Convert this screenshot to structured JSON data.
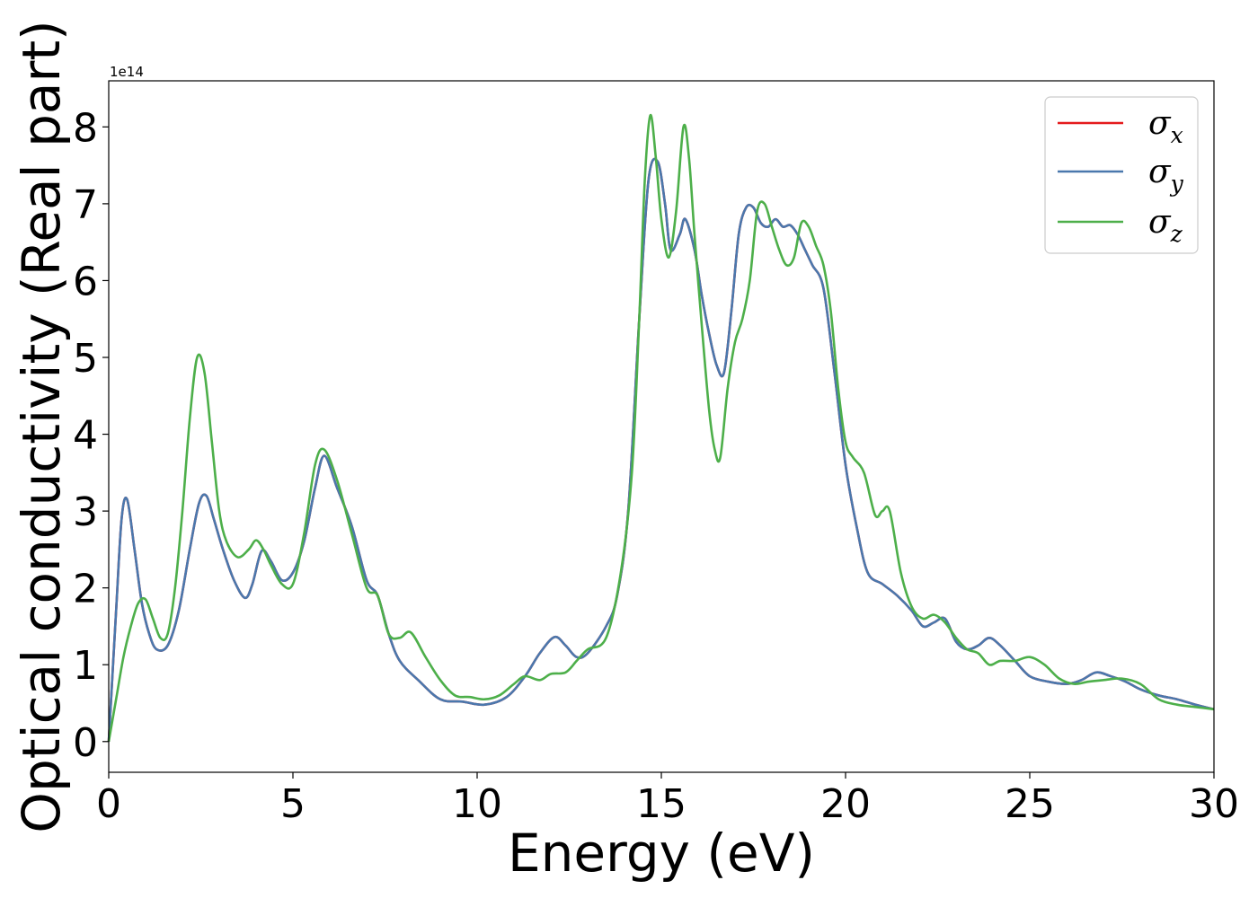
{
  "chart_data": {
    "type": "line",
    "xlabel": "Energy (eV)",
    "ylabel": "Optical conductivity (Real part)",
    "y_offset_text": "1e14",
    "xlim": [
      0,
      30
    ],
    "ylim": [
      -0.4,
      8.6
    ],
    "x_ticks": [
      0,
      5,
      10,
      15,
      20,
      25,
      30
    ],
    "y_ticks": [
      0,
      1,
      2,
      3,
      4,
      5,
      6,
      7,
      8
    ],
    "grid": false,
    "legend_position": "top-right",
    "series": [
      {
        "name": "σ",
        "subscript": "x",
        "color": "#e41a1c",
        "x": [
          0,
          0.2,
          0.35,
          0.5,
          0.7,
          0.9,
          1.1,
          1.3,
          1.6,
          1.9,
          2.2,
          2.45,
          2.65,
          2.85,
          3.1,
          3.4,
          3.7,
          3.9,
          4.15,
          4.4,
          4.7,
          5.0,
          5.3,
          5.6,
          5.85,
          6.2,
          6.6,
          7.0,
          7.3,
          7.6,
          7.9,
          8.4,
          9.0,
          9.6,
          10.2,
          10.8,
          11.3,
          11.7,
          12.1,
          12.4,
          12.7,
          13.0,
          13.5,
          13.8,
          14.1,
          14.4,
          14.65,
          14.9,
          15.1,
          15.25,
          15.5,
          15.65,
          15.9,
          16.1,
          16.3,
          16.5,
          16.7,
          16.9,
          17.1,
          17.3,
          17.5,
          17.7,
          17.9,
          18.1,
          18.3,
          18.5,
          18.7,
          18.9,
          19.1,
          19.4,
          19.7,
          20.0,
          20.3,
          20.6,
          21.0,
          21.4,
          21.8,
          22.1,
          22.4,
          22.7,
          23.0,
          23.3,
          23.6,
          23.9,
          24.2,
          24.6,
          25.0,
          25.5,
          26.0,
          26.4,
          26.8,
          27.2,
          27.6,
          28.0,
          28.5,
          29.0,
          29.5,
          30.0
        ],
        "values": [
          0,
          1.7,
          2.9,
          3.15,
          2.5,
          1.8,
          1.4,
          1.2,
          1.25,
          1.7,
          2.5,
          3.1,
          3.2,
          2.9,
          2.5,
          2.1,
          1.87,
          2.05,
          2.48,
          2.35,
          2.1,
          2.2,
          2.6,
          3.3,
          3.72,
          3.3,
          2.8,
          2.1,
          1.9,
          1.4,
          1.05,
          0.8,
          0.55,
          0.52,
          0.48,
          0.58,
          0.85,
          1.15,
          1.36,
          1.25,
          1.1,
          1.15,
          1.5,
          1.9,
          3.0,
          5.5,
          7.3,
          7.55,
          7.0,
          6.4,
          6.6,
          6.8,
          6.4,
          5.8,
          5.3,
          4.9,
          4.8,
          5.6,
          6.6,
          6.95,
          6.95,
          6.75,
          6.7,
          6.8,
          6.7,
          6.72,
          6.6,
          6.4,
          6.2,
          5.9,
          4.8,
          3.6,
          2.8,
          2.2,
          2.05,
          1.9,
          1.7,
          1.5,
          1.55,
          1.6,
          1.3,
          1.2,
          1.25,
          1.35,
          1.25,
          1.05,
          0.85,
          0.78,
          0.75,
          0.8,
          0.9,
          0.85,
          0.78,
          0.68,
          0.6,
          0.55,
          0.48,
          0.42
        ]
      },
      {
        "name": "σ",
        "subscript": "y",
        "color": "#4a78ad",
        "x": [
          0,
          0.2,
          0.35,
          0.5,
          0.7,
          0.9,
          1.1,
          1.3,
          1.6,
          1.9,
          2.2,
          2.45,
          2.65,
          2.85,
          3.1,
          3.4,
          3.7,
          3.9,
          4.15,
          4.4,
          4.7,
          5.0,
          5.3,
          5.6,
          5.85,
          6.2,
          6.6,
          7.0,
          7.3,
          7.6,
          7.9,
          8.4,
          9.0,
          9.6,
          10.2,
          10.8,
          11.3,
          11.7,
          12.1,
          12.4,
          12.7,
          13.0,
          13.5,
          13.8,
          14.1,
          14.4,
          14.65,
          14.9,
          15.1,
          15.25,
          15.5,
          15.65,
          15.9,
          16.1,
          16.3,
          16.5,
          16.7,
          16.9,
          17.1,
          17.3,
          17.5,
          17.7,
          17.9,
          18.1,
          18.3,
          18.5,
          18.7,
          18.9,
          19.1,
          19.4,
          19.7,
          20.0,
          20.3,
          20.6,
          21.0,
          21.4,
          21.8,
          22.1,
          22.4,
          22.7,
          23.0,
          23.3,
          23.6,
          23.9,
          24.2,
          24.6,
          25.0,
          25.5,
          26.0,
          26.4,
          26.8,
          27.2,
          27.6,
          28.0,
          28.5,
          29.0,
          29.5,
          30.0
        ],
        "values": [
          0,
          1.7,
          2.9,
          3.15,
          2.5,
          1.8,
          1.4,
          1.2,
          1.25,
          1.7,
          2.5,
          3.1,
          3.2,
          2.9,
          2.5,
          2.1,
          1.87,
          2.05,
          2.48,
          2.35,
          2.1,
          2.2,
          2.6,
          3.3,
          3.72,
          3.3,
          2.8,
          2.1,
          1.9,
          1.4,
          1.05,
          0.8,
          0.55,
          0.52,
          0.48,
          0.58,
          0.85,
          1.15,
          1.36,
          1.25,
          1.1,
          1.15,
          1.5,
          1.9,
          3.0,
          5.5,
          7.3,
          7.55,
          7.0,
          6.4,
          6.6,
          6.8,
          6.4,
          5.8,
          5.3,
          4.9,
          4.8,
          5.6,
          6.6,
          6.95,
          6.95,
          6.75,
          6.7,
          6.8,
          6.7,
          6.72,
          6.6,
          6.4,
          6.2,
          5.9,
          4.8,
          3.6,
          2.8,
          2.2,
          2.05,
          1.9,
          1.7,
          1.5,
          1.55,
          1.6,
          1.3,
          1.2,
          1.25,
          1.35,
          1.25,
          1.05,
          0.85,
          0.78,
          0.75,
          0.8,
          0.9,
          0.85,
          0.78,
          0.68,
          0.6,
          0.55,
          0.48,
          0.42
        ]
      },
      {
        "name": "σ",
        "subscript": "z",
        "color": "#4daf4a",
        "x": [
          0,
          0.2,
          0.4,
          0.6,
          0.8,
          1.0,
          1.2,
          1.4,
          1.6,
          1.8,
          2.0,
          2.2,
          2.4,
          2.6,
          2.8,
          3.0,
          3.2,
          3.5,
          3.8,
          4.0,
          4.2,
          4.4,
          4.7,
          5.0,
          5.3,
          5.6,
          5.85,
          6.2,
          6.6,
          7.0,
          7.3,
          7.6,
          7.9,
          8.2,
          8.6,
          9.0,
          9.4,
          9.8,
          10.2,
          10.6,
          11.0,
          11.3,
          11.7,
          12.0,
          12.4,
          12.7,
          13.0,
          13.5,
          13.9,
          14.2,
          14.4,
          14.55,
          14.7,
          14.85,
          15.0,
          15.2,
          15.4,
          15.6,
          15.75,
          15.9,
          16.1,
          16.3,
          16.45,
          16.6,
          16.8,
          17.0,
          17.2,
          17.4,
          17.6,
          17.8,
          18.0,
          18.2,
          18.4,
          18.6,
          18.8,
          19.0,
          19.2,
          19.4,
          19.6,
          19.8,
          20.0,
          20.2,
          20.5,
          20.8,
          21.0,
          21.2,
          21.5,
          21.8,
          22.1,
          22.4,
          22.7,
          23.0,
          23.3,
          23.6,
          23.9,
          24.2,
          24.6,
          25.0,
          25.4,
          25.8,
          26.2,
          26.6,
          27.0,
          27.5,
          28.0,
          28.5,
          29.0,
          29.5,
          30.0
        ],
        "values": [
          0,
          0.55,
          1.1,
          1.5,
          1.8,
          1.85,
          1.6,
          1.35,
          1.4,
          2.0,
          3.0,
          4.2,
          5.0,
          4.8,
          3.9,
          3.0,
          2.6,
          2.4,
          2.5,
          2.62,
          2.5,
          2.3,
          2.05,
          2.05,
          2.7,
          3.6,
          3.8,
          3.4,
          2.7,
          2.0,
          1.9,
          1.4,
          1.35,
          1.42,
          1.1,
          0.8,
          0.6,
          0.58,
          0.55,
          0.6,
          0.75,
          0.85,
          0.8,
          0.88,
          0.9,
          1.05,
          1.2,
          1.35,
          2.2,
          3.5,
          5.5,
          7.3,
          8.15,
          7.6,
          6.8,
          6.3,
          6.9,
          8.0,
          7.6,
          6.6,
          5.4,
          4.3,
          3.8,
          3.7,
          4.6,
          5.2,
          5.5,
          6.0,
          6.9,
          7.0,
          6.7,
          6.4,
          6.2,
          6.3,
          6.75,
          6.7,
          6.45,
          6.2,
          5.6,
          4.6,
          3.9,
          3.7,
          3.5,
          2.95,
          3.0,
          3.0,
          2.2,
          1.75,
          1.6,
          1.65,
          1.55,
          1.35,
          1.2,
          1.15,
          1.0,
          1.05,
          1.05,
          1.1,
          1.0,
          0.82,
          0.75,
          0.78,
          0.8,
          0.82,
          0.75,
          0.55,
          0.48,
          0.45,
          0.42
        ]
      }
    ]
  }
}
